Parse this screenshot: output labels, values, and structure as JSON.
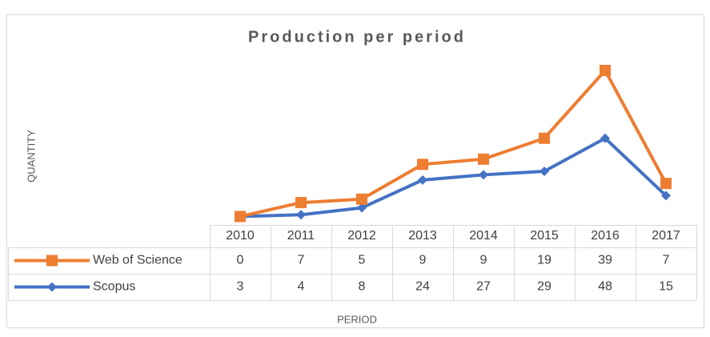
{
  "chart_data": {
    "type": "line",
    "stacked": true,
    "data_table": true,
    "title": "Production per period",
    "y_label": "QUANTITY",
    "x_label": "PERIOD",
    "categories": [
      "2010",
      "2011",
      "2012",
      "2013",
      "2014",
      "2015",
      "2016",
      "2017"
    ],
    "series": [
      {
        "name": "Web of Science",
        "color": "#ED7D31",
        "marker": "square",
        "values": [
          0,
          7,
          5,
          9,
          9,
          19,
          39,
          7
        ]
      },
      {
        "name": "Scopus",
        "color": "#4472C4",
        "marker": "diamond",
        "values": [
          3,
          4,
          8,
          24,
          27,
          29,
          48,
          15
        ]
      }
    ]
  }
}
